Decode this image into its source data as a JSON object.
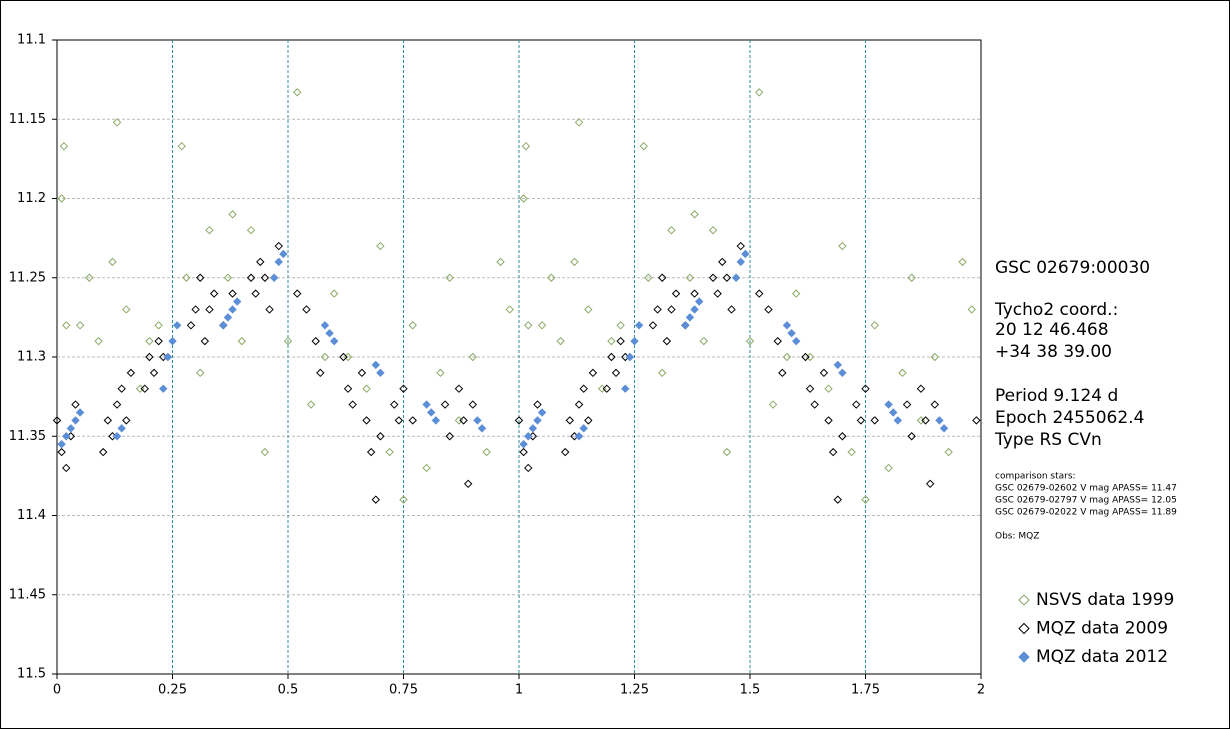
{
  "chart_data": {
    "type": "scatter",
    "annotations": [
      "GSC 02679:00030",
      "Tycho2 coord.:",
      "20 12 46.468",
      "+34 38 39.00",
      "Period 9.124 d",
      "Epoch  2455062.4",
      "Type RS CVn",
      "comparison stars:",
      "GSC 02679-02602 V mag APASS= 11.47",
      "GSC 02679-02797 V mag APASS= 12.05",
      "GSC 02679-02022 V mag APASS= 11.89",
      "Obs: MQZ"
    ],
    "xlim": [
      0,
      2
    ],
    "xticks": [
      0,
      0.25,
      0.5,
      0.75,
      1,
      1.25,
      1.5,
      1.75,
      2
    ],
    "ylim": [
      11.1,
      11.5
    ],
    "y_inverted": true,
    "yticks": [
      11.1,
      11.15,
      11.2,
      11.25,
      11.3,
      11.35,
      11.4,
      11.45,
      11.5
    ],
    "grid": true,
    "legend": "right",
    "series": [
      {
        "name": "NSVS data 1999",
        "color": "#8aaa66",
        "filled": false,
        "x": [
          0.01,
          0.015,
          0.02,
          0.05,
          0.07,
          0.09,
          0.12,
          0.13,
          0.15,
          0.18,
          0.2,
          0.22,
          0.24,
          0.27,
          0.28,
          0.31,
          0.33,
          0.37,
          0.38,
          0.4,
          0.42,
          0.45,
          0.5,
          0.52,
          0.55,
          0.58,
          0.6,
          0.63,
          0.67,
          0.7,
          0.72,
          0.75,
          0.77,
          0.8,
          0.83,
          0.85,
          0.87,
          0.9,
          0.93,
          0.96,
          0.98,
          1.01,
          1.015,
          1.02,
          1.05,
          1.07,
          1.09,
          1.12,
          1.13,
          1.15,
          1.18,
          1.2,
          1.22,
          1.24,
          1.27,
          1.28,
          1.31,
          1.33,
          1.37,
          1.38,
          1.4,
          1.42,
          1.45,
          1.5,
          1.52,
          1.55,
          1.58,
          1.6,
          1.63,
          1.67,
          1.7,
          1.72,
          1.75,
          1.77,
          1.8,
          1.83,
          1.85,
          1.87,
          1.9,
          1.93,
          1.96,
          1.98
        ],
        "values": [
          11.2,
          11.167,
          11.28,
          11.28,
          11.25,
          11.29,
          11.24,
          11.152,
          11.27,
          11.32,
          11.29,
          11.28,
          11.3,
          11.167,
          11.25,
          11.31,
          11.22,
          11.25,
          11.21,
          11.29,
          11.22,
          11.36,
          11.29,
          11.133,
          11.33,
          11.3,
          11.26,
          11.3,
          11.32,
          11.23,
          11.36,
          11.39,
          11.28,
          11.37,
          11.31,
          11.25,
          11.34,
          11.3,
          11.36,
          11.24,
          11.27,
          11.2,
          11.167,
          11.28,
          11.28,
          11.25,
          11.29,
          11.24,
          11.152,
          11.27,
          11.32,
          11.29,
          11.28,
          11.3,
          11.167,
          11.25,
          11.31,
          11.22,
          11.25,
          11.21,
          11.29,
          11.22,
          11.36,
          11.29,
          11.133,
          11.33,
          11.3,
          11.26,
          11.3,
          11.32,
          11.23,
          11.36,
          11.39,
          11.28,
          11.37,
          11.31,
          11.25,
          11.34,
          11.3,
          11.36,
          11.24,
          11.27
        ]
      },
      {
        "name": "MQZ data 2009",
        "color": "#000000",
        "filled": false,
        "x": [
          0,
          0.01,
          0.02,
          0.03,
          0.04,
          0.1,
          0.11,
          0.12,
          0.13,
          0.14,
          0.15,
          0.16,
          0.19,
          0.2,
          0.21,
          0.22,
          0.23,
          0.29,
          0.3,
          0.31,
          0.32,
          0.33,
          0.34,
          0.36,
          0.38,
          0.42,
          0.43,
          0.44,
          0.45,
          0.46,
          0.48,
          0.52,
          0.54,
          0.56,
          0.57,
          0.62,
          0.63,
          0.64,
          0.66,
          0.67,
          0.68,
          0.69,
          0.7,
          0.73,
          0.74,
          0.75,
          0.77,
          0.84,
          0.85,
          0.87,
          0.88,
          0.89,
          0.9,
          1,
          1.01,
          1.02,
          1.03,
          1.04,
          1.1,
          1.11,
          1.12,
          1.13,
          1.14,
          1.15,
          1.16,
          1.19,
          1.2,
          1.21,
          1.22,
          1.23,
          1.29,
          1.3,
          1.31,
          1.32,
          1.33,
          1.34,
          1.36,
          1.38,
          1.42,
          1.43,
          1.44,
          1.45,
          1.46,
          1.48,
          1.52,
          1.54,
          1.56,
          1.57,
          1.62,
          1.63,
          1.64,
          1.66,
          1.67,
          1.68,
          1.69,
          1.7,
          1.73,
          1.74,
          1.75,
          1.77,
          1.84,
          1.85,
          1.87,
          1.88,
          1.89,
          1.9,
          1.99
        ],
        "values": [
          11.34,
          11.36,
          11.37,
          11.35,
          11.33,
          11.36,
          11.34,
          11.35,
          11.33,
          11.32,
          11.34,
          11.31,
          11.32,
          11.3,
          11.31,
          11.29,
          11.3,
          11.28,
          11.27,
          11.25,
          11.29,
          11.27,
          11.26,
          11.28,
          11.26,
          11.25,
          11.26,
          11.24,
          11.25,
          11.27,
          11.23,
          11.26,
          11.27,
          11.29,
          11.31,
          11.3,
          11.32,
          11.33,
          11.31,
          11.34,
          11.36,
          11.39,
          11.35,
          11.33,
          11.34,
          11.32,
          11.34,
          11.33,
          11.35,
          11.32,
          11.34,
          11.38,
          11.33,
          11.34,
          11.36,
          11.37,
          11.35,
          11.33,
          11.36,
          11.34,
          11.35,
          11.33,
          11.32,
          11.34,
          11.31,
          11.32,
          11.3,
          11.31,
          11.29,
          11.3,
          11.28,
          11.27,
          11.25,
          11.29,
          11.27,
          11.26,
          11.28,
          11.26,
          11.25,
          11.26,
          11.24,
          11.25,
          11.27,
          11.23,
          11.26,
          11.27,
          11.29,
          11.31,
          11.3,
          11.32,
          11.33,
          11.31,
          11.34,
          11.36,
          11.39,
          11.35,
          11.33,
          11.34,
          11.32,
          11.34,
          11.33,
          11.35,
          11.32,
          11.34,
          11.38,
          11.33,
          11.34
        ]
      },
      {
        "name": "MQZ data 2012",
        "color": "#5b8ed6",
        "filled": true,
        "x": [
          0.01,
          0.02,
          0.03,
          0.04,
          0.05,
          0.13,
          0.14,
          0.23,
          0.24,
          0.25,
          0.26,
          0.36,
          0.37,
          0.38,
          0.39,
          0.47,
          0.48,
          0.49,
          0.58,
          0.59,
          0.6,
          0.69,
          0.7,
          0.8,
          0.81,
          0.82,
          0.91,
          0.92,
          1.01,
          1.02,
          1.03,
          1.04,
          1.05,
          1.13,
          1.14,
          1.23,
          1.24,
          1.25,
          1.26,
          1.36,
          1.37,
          1.38,
          1.39,
          1.47,
          1.48,
          1.49,
          1.58,
          1.59,
          1.6,
          1.69,
          1.7,
          1.8,
          1.81,
          1.82,
          1.91,
          1.92
        ],
        "values": [
          11.355,
          11.35,
          11.345,
          11.34,
          11.335,
          11.35,
          11.345,
          11.32,
          11.3,
          11.29,
          11.28,
          11.28,
          11.275,
          11.27,
          11.265,
          11.25,
          11.24,
          11.235,
          11.28,
          11.285,
          11.29,
          11.305,
          11.31,
          11.33,
          11.335,
          11.34,
          11.34,
          11.345,
          11.355,
          11.35,
          11.345,
          11.34,
          11.335,
          11.35,
          11.345,
          11.32,
          11.3,
          11.29,
          11.28,
          11.28,
          11.275,
          11.27,
          11.265,
          11.25,
          11.24,
          11.235,
          11.28,
          11.285,
          11.29,
          11.305,
          11.31,
          11.33,
          11.335,
          11.34,
          11.34,
          11.345
        ]
      }
    ]
  }
}
